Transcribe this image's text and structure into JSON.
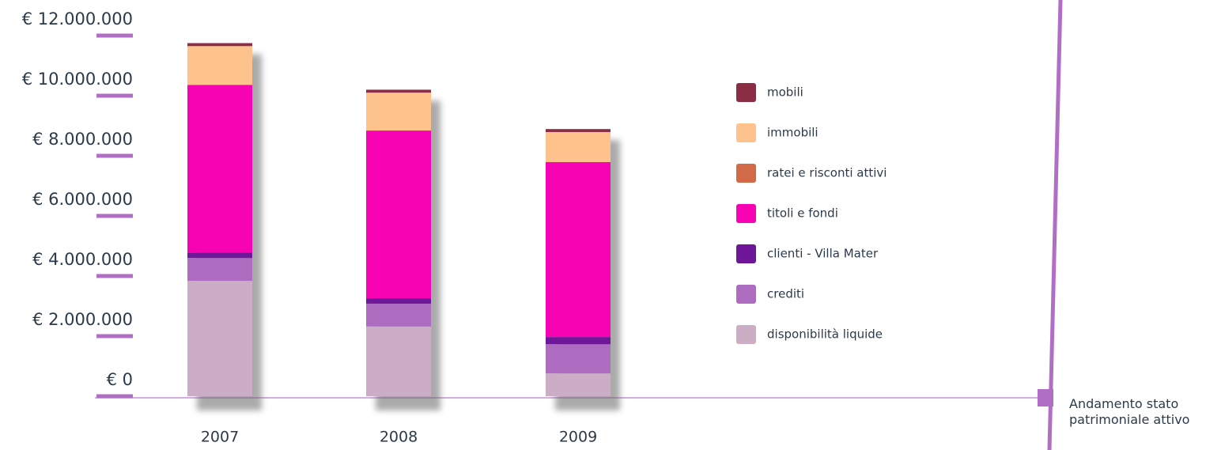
{
  "chart_data": {
    "type": "stacked_bar",
    "categories": [
      "2007",
      "2008",
      "2009"
    ],
    "series": [
      {
        "name": "disponibilità liquide",
        "color": "#cbaec6",
        "values": [
          3840000,
          2320000,
          760000
        ]
      },
      {
        "name": "crediti",
        "color": "#ad6cc0",
        "values": [
          760000,
          760000,
          970000
        ]
      },
      {
        "name": "clienti - Villa Mater",
        "color": "#6e1799",
        "values": [
          180000,
          180000,
          240000
        ]
      },
      {
        "name": "titoli e fondi",
        "color": "#f703b3",
        "values": [
          5580000,
          5580000,
          5820000
        ]
      },
      {
        "name": "ratei e risconti attivi",
        "color": "#d36a47",
        "values": [
          0,
          0,
          0
        ]
      },
      {
        "name": "immobili",
        "color": "#fec28d",
        "values": [
          1290000,
          1260000,
          1000000
        ]
      },
      {
        "name": "mobili",
        "color": "#8b2d45",
        "values": [
          100000,
          100000,
          100000
        ]
      }
    ],
    "ylim": [
      0,
      12000000
    ],
    "yticks": [
      {
        "value": 0,
        "label": "€ 0"
      },
      {
        "value": 2000000,
        "label": "€ 2.000.000"
      },
      {
        "value": 4000000,
        "label": "€ 4.000.000"
      },
      {
        "value": 6000000,
        "label": "€ 6.000.000"
      },
      {
        "value": 8000000,
        "label": "€ 8.000.000"
      },
      {
        "value": 10000000,
        "label": "€ 10.000.000"
      },
      {
        "value": 12000000,
        "label": "€ 12.000.000"
      }
    ],
    "annotation": "Andamento stato patrimoniale attivo"
  }
}
